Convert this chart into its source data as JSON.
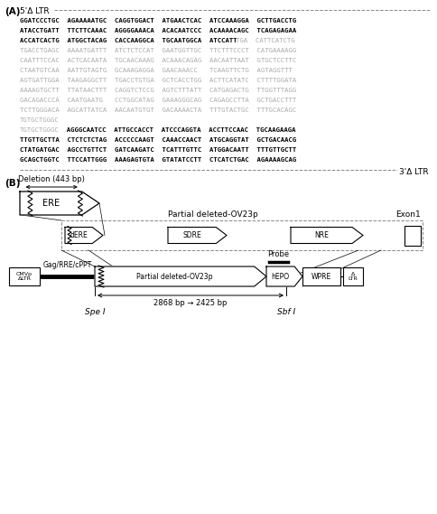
{
  "bg_color": "#ffffff",
  "gray_color": "#aaaaaa",
  "light_gray": "#cccccc",
  "dna_black_lines": [
    "GGATCCCTGC  AGAAAAATGC  CAGGTGGACT  ATGAACTCAC  ATCCAAAGGA  GCTTGACCTG",
    "ATACCTGATT  TTCTTCAAAC  AGGGGAAACA  ACACAATCCC  ACAAAACAGC  TCAGAGAGAA",
    "ACCATCACTG  ATGGCTACAG  CACCAAGGCA  TGCAATGGCA  ATCCATT"
  ],
  "dna_gray_suffix_line3": "TGA  CATTCATCTG",
  "dna_gray_lines": [
    "TGACCTGAGC  AAAATGATTT  ATCTCTCCAT  GAATGGTTGC  TTCTTTCCCT  CATGAAAAGG",
    "CAATTTCCAC  ACTCACAATA  TGCAACAAAG  ACAAACAGAG  AACAATTAAT  GTGCTCCTTC",
    "CTAATGTCAA  AATTGTAGTG  GCAAAGAGGA  GAACAAACC   TCAAGTTCTG  AGTAGGTTT",
    "AGTGATTGGA  TAAGAGGCTT  TGACCTGTGA  GCTCACCTGG  ACTTCATATC  CTTTTGGATA",
    "AAAAGTGCTT  TTATAACTTT  CAGGTCTCCG  AGTCTTTATT  CATGAGACTG  TTGGTTTAGG",
    "GACAGACCCA  CAATGAATG   CCTGGCATAG  GAAAGGGCAG  CAGAGCCTTA  GCTGACCTTT",
    "TCTTGGGACA  AGCATTATCA  AACAATGTGT  GACAAAACTA  TTTGTACTGC  TTTGCACAGC",
    "TGTGCTGGGC"
  ],
  "dna_mixed_gray": "TGTGCTGGGC",
  "dna_mixed_black": "  AGGGCAATCC  ATTGCCACCT  ATCCCAGGTA  ACCTTCCAAC  TGCAAGAAGA",
  "dna_black2_lines": [
    "TTGTTGCTTA  CTCTCTCTAG  ACCCCCAAGT  CAAACCAACT  ATGCAGGTAT  GCTGACAACG",
    "CTATGATGAC  AGCCTGTTCT  GATCAAGATC  TCATTTGTTC  ATGGACAATT  TTTGTTGCTT",
    "GCAGCTGGTC  TTCCATTGGG  AAAGAGTGTA  GTATATCCTT  CTCATCTGAC  AGAAAAGCAG"
  ]
}
